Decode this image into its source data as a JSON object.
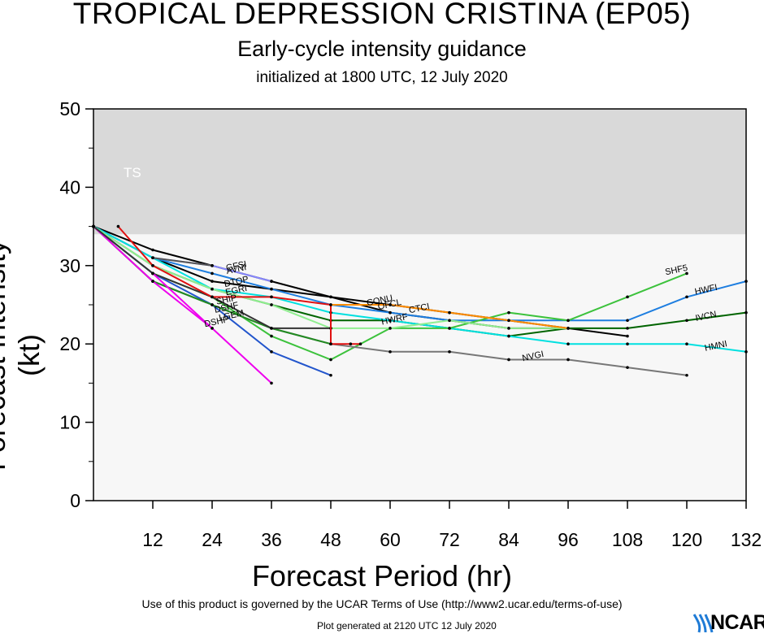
{
  "header": {
    "title": "TROPICAL DEPRESSION CRISTINA (EP05)",
    "subtitle": "Early-cycle intensity guidance",
    "initialized": "initialized at 1800 UTC, 12 July 2020"
  },
  "footer": {
    "terms": "Use of this product is governed by the UCAR Terms of Use (http://www2.ucar.edu/terms-of-use)",
    "generated": "Plot generated at 2120 UTC   12 July 2020",
    "logo": "NCAR"
  },
  "chart_data": {
    "type": "line",
    "title": "TROPICAL DEPRESSION CRISTINA (EP05)",
    "xlabel": "Forecast Period (hr)",
    "ylabel": "Forecast Intensity (kt)",
    "xlim": [
      0,
      132
    ],
    "ylim": [
      0,
      50
    ],
    "xticks": [
      12,
      24,
      36,
      48,
      60,
      72,
      84,
      96,
      108,
      120,
      132
    ],
    "yticks": [
      0,
      10,
      20,
      30,
      40,
      50
    ],
    "bands": [
      {
        "label": "TS",
        "from": 34,
        "to": 50,
        "color": "#d9d9d9"
      }
    ],
    "series": [
      {
        "name": "OFCL",
        "color": "#000000",
        "label_at": [
          60,
          24.7
        ],
        "points": [
          [
            0,
            35
          ],
          [
            12,
            32
          ],
          [
            24,
            30
          ],
          [
            36,
            28
          ],
          [
            48,
            26
          ],
          [
            60,
            24
          ],
          [
            72,
            23
          ],
          [
            84,
            22
          ],
          [
            96,
            22
          ],
          [
            108,
            21
          ]
        ]
      },
      {
        "name": "CONU",
        "color": "#000000",
        "label_at": [
          58,
          25.2
        ],
        "points": [
          [
            0,
            35
          ],
          [
            12,
            31
          ],
          [
            24,
            28
          ],
          [
            36,
            27
          ],
          [
            48,
            26
          ],
          [
            60,
            25
          ],
          [
            72,
            24
          ],
          [
            84,
            23
          ],
          [
            96,
            22
          ]
        ]
      },
      {
        "name": "HWFI",
        "color": "#1e7ee0",
        "label_at": [
          124,
          26.6
        ],
        "points": [
          [
            0,
            35
          ],
          [
            12,
            31
          ],
          [
            24,
            29
          ],
          [
            36,
            27
          ],
          [
            48,
            25
          ],
          [
            60,
            24
          ],
          [
            72,
            23
          ],
          [
            84,
            23
          ],
          [
            96,
            23
          ],
          [
            108,
            23
          ],
          [
            120,
            26
          ],
          [
            132,
            28
          ]
        ]
      },
      {
        "name": "IVCN",
        "color": "#006400",
        "label_at": [
          124,
          23.2
        ],
        "points": [
          [
            0,
            35
          ],
          [
            12,
            30
          ],
          [
            24,
            27
          ],
          [
            36,
            25
          ],
          [
            48,
            23
          ],
          [
            60,
            23
          ],
          [
            72,
            22
          ],
          [
            84,
            21
          ],
          [
            96,
            22
          ],
          [
            108,
            22
          ],
          [
            120,
            23
          ],
          [
            132,
            24
          ]
        ]
      },
      {
        "name": "HMNI",
        "color": "#00e0e0",
        "label_at": [
          126,
          19.4
        ],
        "points": [
          [
            0,
            35
          ],
          [
            12,
            31
          ],
          [
            24,
            27
          ],
          [
            36,
            26
          ],
          [
            48,
            24
          ],
          [
            60,
            23
          ],
          [
            72,
            22
          ],
          [
            84,
            21
          ],
          [
            96,
            20
          ],
          [
            108,
            20
          ],
          [
            120,
            20
          ],
          [
            132,
            19
          ]
        ]
      },
      {
        "name": "SHF5",
        "color": "#3cc23c",
        "label_at": [
          118,
          29.1
        ],
        "points": [
          [
            0,
            35
          ],
          [
            12,
            29
          ],
          [
            24,
            26
          ],
          [
            36,
            21
          ],
          [
            48,
            18
          ],
          [
            60,
            22
          ],
          [
            72,
            22
          ],
          [
            84,
            24
          ],
          [
            96,
            23
          ],
          [
            108,
            26
          ],
          [
            120,
            29
          ]
        ]
      },
      {
        "name": "NVGI",
        "color": "#777777",
        "label_at": [
          89,
          18.1
        ],
        "points": [
          [
            0,
            35
          ],
          [
            12,
            28
          ],
          [
            24,
            25
          ],
          [
            36,
            22
          ],
          [
            48,
            20
          ],
          [
            60,
            19
          ],
          [
            72,
            19
          ],
          [
            84,
            18
          ],
          [
            96,
            18
          ],
          [
            108,
            17
          ],
          [
            120,
            16
          ]
        ]
      },
      {
        "name": "HWRF",
        "color": "#90ee90",
        "label_at": [
          61,
          22.8
        ],
        "points": [
          [
            0,
            35
          ],
          [
            12,
            30
          ],
          [
            24,
            27
          ],
          [
            36,
            25
          ],
          [
            48,
            22
          ],
          [
            60,
            22
          ],
          [
            72,
            23
          ],
          [
            84,
            22
          ],
          [
            96,
            22
          ]
        ]
      },
      {
        "name": "LGEM",
        "color": "#2255cc",
        "label_at": [
          28,
          23.3
        ],
        "points": [
          [
            0,
            35
          ],
          [
            12,
            29
          ],
          [
            24,
            25
          ],
          [
            36,
            19
          ],
          [
            48,
            16
          ]
        ]
      },
      {
        "name": "SHIP",
        "color": "#228b22",
        "label_at": [
          27,
          25.3
        ],
        "points": [
          [
            0,
            35
          ],
          [
            12,
            28
          ],
          [
            24,
            25
          ],
          [
            36,
            22
          ],
          [
            48,
            20
          ]
        ]
      },
      {
        "name": "DSHP",
        "color": "#ee00ee",
        "label_at": [
          25,
          22.5
        ],
        "points": [
          [
            0,
            35
          ],
          [
            12,
            28
          ],
          [
            24,
            22
          ]
        ]
      },
      {
        "name": "DTOP",
        "color": "#333333",
        "label_at": [
          29,
          27.6
        ],
        "points": [
          [
            0,
            35
          ],
          [
            12,
            29
          ],
          [
            24,
            26
          ],
          [
            36,
            22
          ],
          [
            48,
            22
          ]
        ]
      },
      {
        "name": "EGRI",
        "color": "#e01010",
        "label_at": [
          29,
          26.5
        ],
        "points": [
          [
            5,
            35
          ],
          [
            12,
            30
          ],
          [
            24,
            26
          ],
          [
            36,
            26
          ],
          [
            48,
            25
          ],
          [
            48,
            20
          ],
          [
            52,
            20
          ],
          [
            54,
            20
          ]
        ]
      },
      {
        "name": "CTCI",
        "color": "#ff8c00",
        "label_at": [
          66,
          24.2
        ],
        "points": [
          [
            48,
            25
          ],
          [
            60,
            25
          ],
          [
            72,
            24
          ],
          [
            84,
            23
          ],
          [
            96,
            22
          ]
        ]
      },
      {
        "name": "AVNI",
        "color": "#8888ff",
        "label_at": [
          29,
          29.2
        ],
        "points": [
          [
            12,
            31
          ],
          [
            24,
            30
          ],
          [
            36,
            28
          ]
        ]
      },
      {
        "name": "GFSI",
        "color": "#555555",
        "label_at": [
          29,
          29.6
        ],
        "points": [
          [
            12,
            31
          ],
          [
            24,
            30
          ]
        ]
      },
      {
        "name": "DSHF",
        "color": "#ee00ee",
        "label_at": [
          27,
          24.3
        ],
        "points": [
          [
            12,
            29
          ],
          [
            24,
            22
          ],
          [
            36,
            15
          ]
        ]
      }
    ]
  }
}
